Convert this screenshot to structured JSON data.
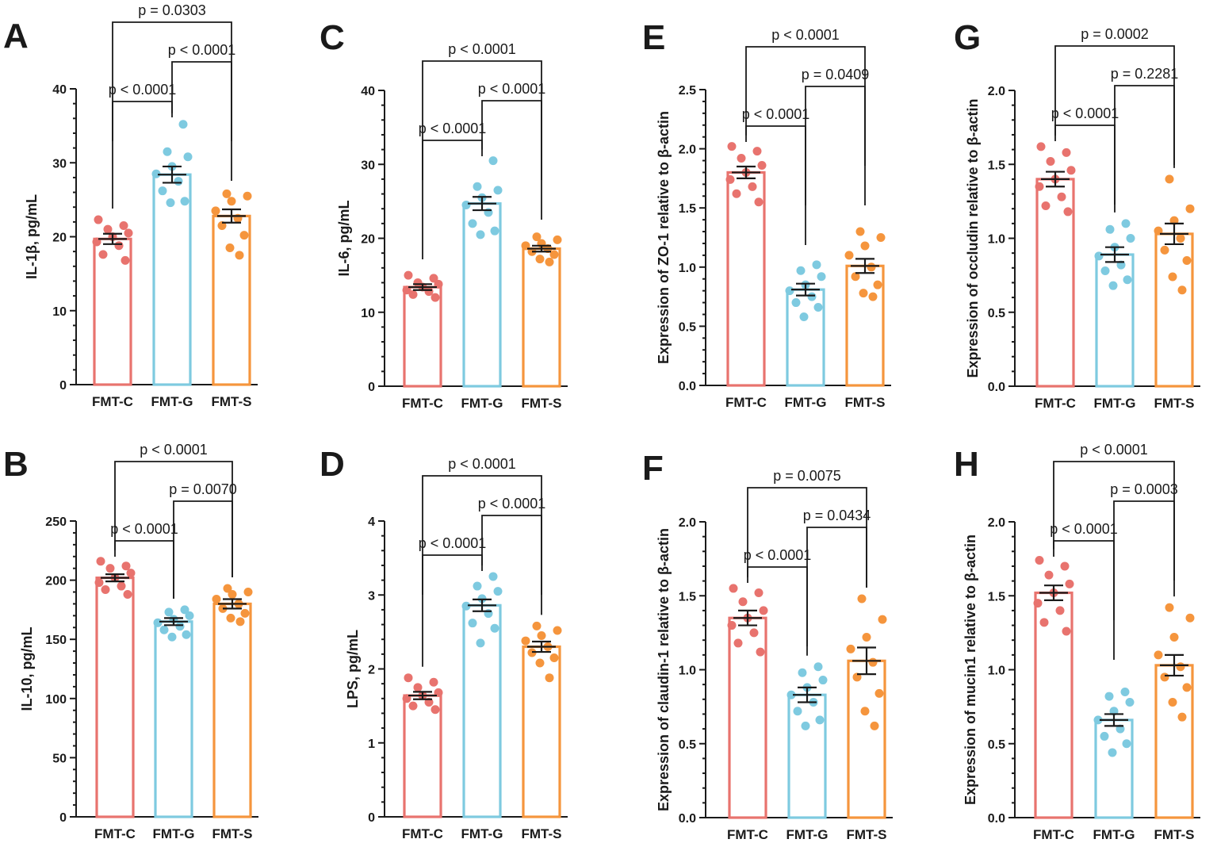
{
  "colors": {
    "FMT-C": "#e8736e",
    "FMT-G": "#7ecae0",
    "FMT-S": "#f5953d",
    "text": "#1a1a1a"
  },
  "chart_data": [
    {
      "panel": "A",
      "type": "bar",
      "ylabel": "IL-1β, pg/mL",
      "categories": [
        "FMT-C",
        "FMT-G",
        "FMT-S"
      ],
      "ylim": [
        0,
        40
      ],
      "yticks": [
        0,
        10,
        20,
        30,
        40
      ],
      "values": [
        19.7,
        28.4,
        22.8
      ],
      "sem": [
        0.7,
        1.1,
        0.9
      ],
      "points": [
        [
          22.3,
          21.5,
          21.0,
          20.5,
          20.0,
          19.3,
          18.8,
          17.6,
          16.8
        ],
        [
          35.2,
          31.5,
          30.8,
          29.5,
          28.5,
          27.5,
          26.2,
          24.8,
          24.6
        ],
        [
          25.8,
          25.5,
          24.8,
          23.5,
          22.5,
          21.5,
          20.2,
          18.5,
          17.5
        ]
      ],
      "comparisons": [
        {
          "pair": [
            0,
            2
          ],
          "label": "p = 0.0303"
        },
        {
          "pair": [
            1,
            2
          ],
          "label": "p < 0.0001"
        },
        {
          "pair": [
            0,
            1
          ],
          "label": "p < 0.0001"
        }
      ]
    },
    {
      "panel": "B",
      "type": "bar",
      "ylabel": "IL-10, pg/mL",
      "categories": [
        "FMT-C",
        "FMT-G",
        "FMT-S"
      ],
      "ylim": [
        0,
        250
      ],
      "yticks": [
        0,
        50,
        100,
        150,
        200,
        250
      ],
      "values": [
        202,
        165,
        180
      ],
      "sem": [
        3,
        3,
        4
      ],
      "points": [
        [
          216,
          212,
          210,
          206,
          202,
          198,
          195,
          192,
          188
        ],
        [
          175,
          173,
          170,
          167,
          164,
          161,
          158,
          154,
          152
        ],
        [
          193,
          190,
          188,
          184,
          180,
          176,
          172,
          168,
          165
        ]
      ],
      "comparisons": [
        {
          "pair": [
            0,
            2
          ],
          "label": "p < 0.0001"
        },
        {
          "pair": [
            1,
            2
          ],
          "label": "p = 0.0070"
        },
        {
          "pair": [
            0,
            1
          ],
          "label": "p < 0.0001"
        }
      ]
    },
    {
      "panel": "C",
      "type": "bar",
      "ylabel": "IL-6, pg/mL",
      "categories": [
        "FMT-C",
        "FMT-G",
        "FMT-S"
      ],
      "ylim": [
        0,
        40
      ],
      "yticks": [
        0,
        10,
        20,
        30,
        40
      ],
      "values": [
        13.4,
        24.7,
        18.6
      ],
      "sem": [
        0.4,
        0.9,
        0.4
      ],
      "points": [
        [
          15.0,
          14.6,
          14.0,
          13.8,
          13.4,
          13.0,
          12.8,
          12.4,
          12.0
        ],
        [
          30.5,
          27.0,
          26.5,
          25.5,
          24.5,
          23.5,
          22.0,
          21.0,
          20.5
        ],
        [
          20.2,
          19.8,
          19.3,
          19.0,
          18.6,
          18.2,
          17.8,
          17.2,
          16.8
        ]
      ],
      "comparisons": [
        {
          "pair": [
            0,
            2
          ],
          "label": "p < 0.0001"
        },
        {
          "pair": [
            1,
            2
          ],
          "label": "p < 0.0001"
        },
        {
          "pair": [
            0,
            1
          ],
          "label": "p < 0.0001"
        }
      ]
    },
    {
      "panel": "D",
      "type": "bar",
      "ylabel": "LPS, pg/mL",
      "categories": [
        "FMT-C",
        "FMT-G",
        "FMT-S"
      ],
      "ylim": [
        0,
        4
      ],
      "yticks": [
        0,
        1,
        2,
        3,
        4
      ],
      "values": [
        1.64,
        2.86,
        2.3
      ],
      "sem": [
        0.05,
        0.08,
        0.07
      ],
      "points": [
        [
          1.88,
          1.82,
          1.75,
          1.68,
          1.64,
          1.6,
          1.55,
          1.5,
          1.45
        ],
        [
          3.25,
          3.12,
          3.05,
          2.95,
          2.85,
          2.75,
          2.62,
          2.55,
          2.35
        ],
        [
          2.58,
          2.52,
          2.45,
          2.38,
          2.3,
          2.22,
          2.15,
          2.08,
          1.88
        ]
      ],
      "comparisons": [
        {
          "pair": [
            0,
            2
          ],
          "label": "p < 0.0001"
        },
        {
          "pair": [
            1,
            2
          ],
          "label": "p < 0.0001"
        },
        {
          "pair": [
            0,
            1
          ],
          "label": "p < 0.0001"
        }
      ]
    },
    {
      "panel": "E",
      "type": "bar",
      "ylabel": "Expression of ZO-1 relative to β-actin",
      "categories": [
        "FMT-C",
        "FMT-G",
        "FMT-S"
      ],
      "ylim": [
        0,
        2.5
      ],
      "yticks": [
        "0.0",
        "0.5",
        "1.0",
        "1.5",
        "2.0",
        "2.5"
      ],
      "values": [
        1.8,
        0.81,
        1.01
      ],
      "sem": [
        0.05,
        0.05,
        0.06
      ],
      "points": [
        [
          2.02,
          1.98,
          1.92,
          1.86,
          1.8,
          1.74,
          1.68,
          1.62,
          1.55
        ],
        [
          1.02,
          0.97,
          0.92,
          0.85,
          0.8,
          0.75,
          0.7,
          0.66,
          0.58
        ],
        [
          1.3,
          1.25,
          1.18,
          1.1,
          1.0,
          0.92,
          0.85,
          0.78,
          0.75
        ]
      ],
      "comparisons": [
        {
          "pair": [
            0,
            2
          ],
          "label": "p < 0.0001"
        },
        {
          "pair": [
            1,
            2
          ],
          "label": "p = 0.0409"
        },
        {
          "pair": [
            0,
            1
          ],
          "label": "p < 0.0001"
        }
      ]
    },
    {
      "panel": "F",
      "type": "bar",
      "ylabel": "Expression of claudin-1 relative to β-actin",
      "categories": [
        "FMT-C",
        "FMT-G",
        "FMT-S"
      ],
      "ylim": [
        0,
        2.0
      ],
      "yticks": [
        "0.0",
        "0.5",
        "1.0",
        "1.5",
        "2.0"
      ],
      "values": [
        1.35,
        0.83,
        1.06
      ],
      "sem": [
        0.05,
        0.05,
        0.09
      ],
      "points": [
        [
          1.55,
          1.52,
          1.46,
          1.4,
          1.35,
          1.3,
          1.25,
          1.18,
          1.12
        ],
        [
          1.02,
          0.98,
          0.93,
          0.88,
          0.83,
          0.78,
          0.72,
          0.66,
          0.62
        ],
        [
          1.48,
          1.34,
          1.22,
          1.14,
          1.05,
          0.95,
          0.84,
          0.72,
          0.62
        ]
      ],
      "comparisons": [
        {
          "pair": [
            0,
            2
          ],
          "label": "p = 0.0075"
        },
        {
          "pair": [
            1,
            2
          ],
          "label": "p = 0.0434"
        },
        {
          "pair": [
            0,
            1
          ],
          "label": "p < 0.0001"
        }
      ]
    },
    {
      "panel": "G",
      "type": "bar",
      "ylabel": "Expression of occludin relative to β-actin",
      "categories": [
        "FMT-C",
        "FMT-G",
        "FMT-S"
      ],
      "ylim": [
        0,
        2.0
      ],
      "yticks": [
        "0.0",
        "0.5",
        "1.0",
        "1.5",
        "2.0"
      ],
      "values": [
        1.4,
        0.89,
        1.03
      ],
      "sem": [
        0.05,
        0.05,
        0.07
      ],
      "points": [
        [
          1.62,
          1.58,
          1.52,
          1.46,
          1.4,
          1.35,
          1.28,
          1.22,
          1.18
        ],
        [
          1.1,
          1.06,
          1.0,
          0.94,
          0.88,
          0.82,
          0.78,
          0.72,
          0.68
        ],
        [
          1.4,
          1.2,
          1.12,
          1.05,
          1.0,
          0.92,
          0.85,
          0.74,
          0.65
        ]
      ],
      "comparisons": [
        {
          "pair": [
            0,
            2
          ],
          "label": "p = 0.0002"
        },
        {
          "pair": [
            1,
            2
          ],
          "label": "p = 0.2281"
        },
        {
          "pair": [
            0,
            1
          ],
          "label": "p < 0.0001"
        }
      ]
    },
    {
      "panel": "H",
      "type": "bar",
      "ylabel": "Expression of mucin1 relative to β-actin",
      "categories": [
        "FMT-C",
        "FMT-G",
        "FMT-S"
      ],
      "ylim": [
        0,
        2.0
      ],
      "yticks": [
        "0.0",
        "0.5",
        "1.0",
        "1.5",
        "2.0"
      ],
      "values": [
        1.52,
        0.66,
        1.03
      ],
      "sem": [
        0.05,
        0.04,
        0.07
      ],
      "points": [
        [
          1.74,
          1.7,
          1.64,
          1.58,
          1.52,
          1.45,
          1.4,
          1.32,
          1.26
        ],
        [
          0.85,
          0.82,
          0.78,
          0.72,
          0.66,
          0.6,
          0.55,
          0.5,
          0.44
        ],
        [
          1.42,
          1.35,
          1.22,
          1.1,
          1.02,
          0.95,
          0.88,
          0.78,
          0.68
        ]
      ],
      "comparisons": [
        {
          "pair": [
            0,
            2
          ],
          "label": "p < 0.0001"
        },
        {
          "pair": [
            1,
            2
          ],
          "label": "p = 0.0003"
        },
        {
          "pair": [
            0,
            1
          ],
          "label": "p < 0.0001"
        }
      ]
    }
  ]
}
